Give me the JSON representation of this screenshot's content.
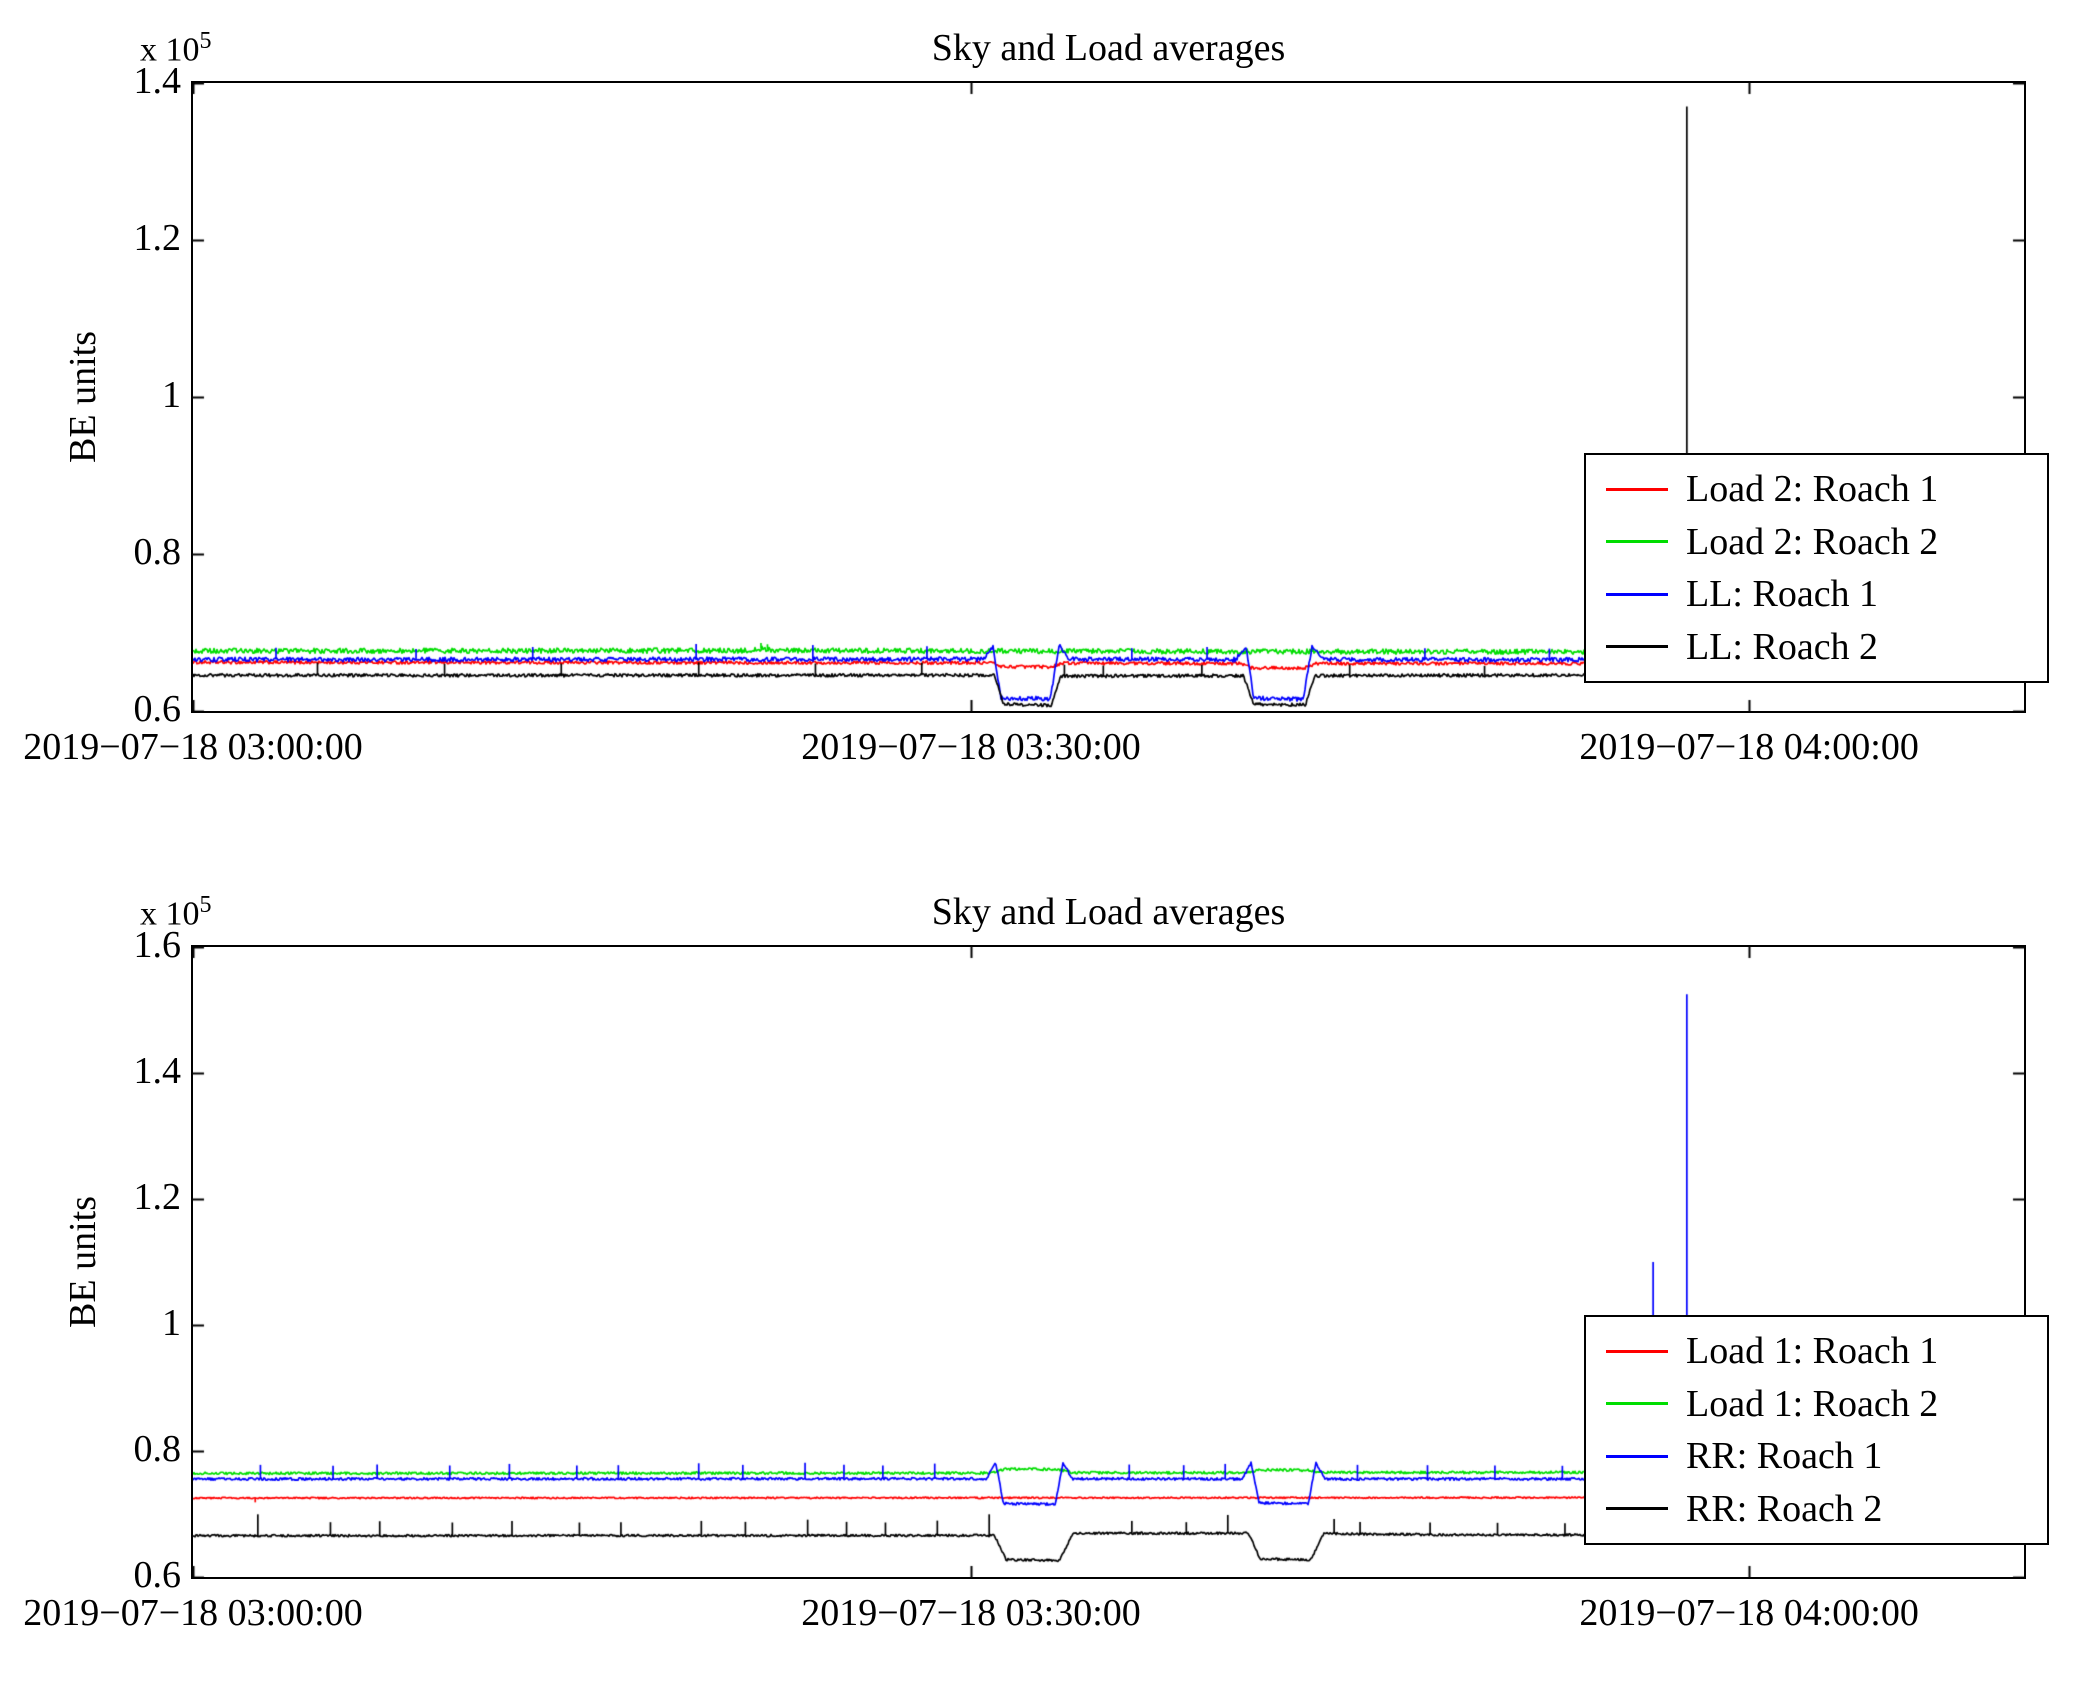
{
  "figure": {
    "background": "#ffffff"
  },
  "chart_data": [
    {
      "type": "line",
      "title": "Sky and Load averages",
      "ylabel": "BE units",
      "y_offset": {
        "base": "x 10",
        "exp": "5"
      },
      "y_units_multiplier": 100000,
      "xlim": [
        0,
        70.6
      ],
      "ylim": [
        0.6,
        1.4
      ],
      "grid": false,
      "legend_position": "right-inside",
      "yticks": [
        {
          "v": 0.6,
          "label": "0.6"
        },
        {
          "v": 0.8,
          "label": "0.8"
        },
        {
          "v": 1.0,
          "label": "1"
        },
        {
          "v": 1.2,
          "label": "1.2"
        },
        {
          "v": 1.4,
          "label": "1.4"
        }
      ],
      "xticks": [
        {
          "t": 0,
          "label": "2019−07−18 03:00:00"
        },
        {
          "t": 30,
          "label": "2019−07−18 03:30:00"
        },
        {
          "t": 60,
          "label": "2019−07−18 04:00:00"
        }
      ],
      "legend": [
        {
          "label": "Load 2: Roach 1",
          "color": "#ff0000"
        },
        {
          "label": "Load 2: Roach 2",
          "color": "#00dd00"
        },
        {
          "label": "LL: Roach 1",
          "color": "#0000ff"
        },
        {
          "label": "LL: Roach 2",
          "color": "#000000"
        }
      ],
      "series": [
        {
          "name": "Load 2: Roach 1",
          "color": "#ff0000",
          "noise": 0.002,
          "keypoints": [
            [
              0,
              0.662
            ],
            [
              30.8,
              0.6615
            ],
            [
              31.2,
              0.6565
            ],
            [
              33.1,
              0.6562
            ],
            [
              33.5,
              0.661
            ],
            [
              40.4,
              0.6605
            ],
            [
              40.8,
              0.655
            ],
            [
              42.9,
              0.655
            ],
            [
              43.3,
              0.6605
            ],
            [
              70.6,
              0.6605
            ]
          ],
          "spikes": [
            [
              2.1,
              0.6655
            ],
            [
              47.2,
              0.663
            ]
          ]
        },
        {
          "name": "Load 2: Roach 2",
          "color": "#00dd00",
          "noise": 0.0032,
          "keypoints": [
            [
              0,
              0.6765
            ],
            [
              21.4,
              0.677
            ],
            [
              21.9,
              0.6795
            ],
            [
              22.4,
              0.677
            ],
            [
              43,
              0.6757
            ],
            [
              70.6,
              0.6752
            ]
          ],
          "spikes": [
            [
              21.9,
              0.6865
            ],
            [
              22.15,
              0.685
            ]
          ]
        },
        {
          "name": "LL: Roach 1",
          "color": "#0000ff",
          "noise": 0.0028,
          "keypoints": [
            [
              0,
              0.6655
            ],
            [
              30.5,
              0.666
            ],
            [
              30.85,
              0.6835
            ],
            [
              31.15,
              0.6165
            ],
            [
              33.05,
              0.6155
            ],
            [
              33.4,
              0.684
            ],
            [
              33.75,
              0.666
            ],
            [
              40.2,
              0.6655
            ],
            [
              40.6,
              0.683
            ],
            [
              40.9,
              0.616
            ],
            [
              42.8,
              0.615
            ],
            [
              43.15,
              0.6835
            ],
            [
              43.55,
              0.6655
            ],
            [
              70.6,
              0.665
            ]
          ],
          "spikes": [
            [
              3.2,
              0.6805
            ],
            [
              8.6,
              0.679
            ],
            [
              13.1,
              0.6815
            ],
            [
              19.4,
              0.6855
            ],
            [
              23.9,
              0.684
            ],
            [
              28.3,
              0.6825
            ],
            [
              36.2,
              0.68
            ],
            [
              39.1,
              0.6815
            ],
            [
              47.5,
              0.68
            ],
            [
              52.3,
              0.6795
            ],
            [
              56.1,
              0.681
            ],
            [
              61.4,
              0.68
            ],
            [
              66.2,
              0.6815
            ],
            [
              69.8,
              0.682
            ]
          ]
        },
        {
          "name": "LL: Roach 2",
          "color": "#000000",
          "noise": 0.002,
          "keypoints": [
            [
              0,
              0.6455
            ],
            [
              30.9,
              0.6455
            ],
            [
              31.25,
              0.6085
            ],
            [
              33.1,
              0.6075
            ],
            [
              33.45,
              0.6445
            ],
            [
              40.5,
              0.645
            ],
            [
              40.9,
              0.6085
            ],
            [
              42.9,
              0.608
            ],
            [
              43.25,
              0.645
            ],
            [
              57.2,
              0.6462
            ],
            [
              70.6,
              0.646
            ]
          ],
          "spikes": [
            [
              4.8,
              0.6615
            ],
            [
              9.7,
              0.66
            ],
            [
              14.2,
              0.6605
            ],
            [
              19.5,
              0.662
            ],
            [
              24,
              0.6605
            ],
            [
              28.1,
              0.6615
            ],
            [
              33.6,
              0.659
            ],
            [
              35.1,
              0.658
            ],
            [
              38.9,
              0.659
            ],
            [
              44.6,
              0.659
            ],
            [
              49.8,
              0.6575
            ],
            [
              53.9,
              0.657
            ],
            [
              57.6,
              1.37
            ],
            [
              61,
              0.6585
            ],
            [
              65.3,
              0.659
            ],
            [
              69.2,
              0.66
            ]
          ]
        }
      ]
    },
    {
      "type": "line",
      "title": "Sky and Load averages",
      "ylabel": "BE units",
      "y_offset": {
        "base": "x 10",
        "exp": "5"
      },
      "y_units_multiplier": 100000,
      "xlim": [
        0,
        70.6
      ],
      "ylim": [
        0.6,
        1.6
      ],
      "grid": false,
      "legend_position": "right-inside",
      "yticks": [
        {
          "v": 0.6,
          "label": "0.6"
        },
        {
          "v": 0.8,
          "label": "0.8"
        },
        {
          "v": 1.0,
          "label": "1"
        },
        {
          "v": 1.2,
          "label": "1.2"
        },
        {
          "v": 1.4,
          "label": "1.4"
        },
        {
          "v": 1.6,
          "label": "1.6"
        }
      ],
      "xticks": [
        {
          "t": 0,
          "label": "2019−07−18 03:00:00"
        },
        {
          "t": 30,
          "label": "2019−07−18 03:30:00"
        },
        {
          "t": 60,
          "label": "2019−07−18 04:00:00"
        }
      ],
      "legend": [
        {
          "label": "Load 1: Roach 1",
          "color": "#ff0000"
        },
        {
          "label": "Load 1: Roach 2",
          "color": "#00dd00"
        },
        {
          "label": "RR: Roach 1",
          "color": "#0000ff"
        },
        {
          "label": "RR: Roach 2",
          "color": "#000000"
        }
      ],
      "series": [
        {
          "name": "Load 1: Roach 1",
          "color": "#ff0000",
          "noise": 0.0012,
          "keypoints": [
            [
              0,
              0.7253
            ],
            [
              70.6,
              0.7262
            ]
          ],
          "spikes": [
            [
              2.4,
              0.7185
            ]
          ]
        },
        {
          "name": "Load 1: Roach 2",
          "color": "#00dd00",
          "noise": 0.002,
          "keypoints": [
            [
              0,
              0.7645
            ],
            [
              30.8,
              0.765
            ],
            [
              31.3,
              0.7715
            ],
            [
              33.4,
              0.7708
            ],
            [
              33.9,
              0.7655
            ],
            [
              40.6,
              0.7655
            ],
            [
              41.1,
              0.77
            ],
            [
              43,
              0.7695
            ],
            [
              43.5,
              0.766
            ],
            [
              70.6,
              0.766
            ]
          ],
          "spikes": []
        },
        {
          "name": "RR: Roach 1",
          "color": "#0000ff",
          "noise": 0.002,
          "keypoints": [
            [
              0,
              0.7555
            ],
            [
              30.6,
              0.756
            ],
            [
              30.95,
              0.782
            ],
            [
              31.25,
              0.7165
            ],
            [
              33.25,
              0.7155
            ],
            [
              33.55,
              0.782
            ],
            [
              33.9,
              0.756
            ],
            [
              40.45,
              0.7555
            ],
            [
              40.8,
              0.781
            ],
            [
              41.1,
              0.7175
            ],
            [
              43,
              0.7165
            ],
            [
              43.3,
              0.781
            ],
            [
              43.65,
              0.7555
            ],
            [
              70.6,
              0.756
            ]
          ],
          "spikes": [
            [
              2.6,
              0.778
            ],
            [
              5.4,
              0.7765
            ],
            [
              7.1,
              0.7785
            ],
            [
              9.9,
              0.777
            ],
            [
              12.2,
              0.7795
            ],
            [
              14.8,
              0.777
            ],
            [
              16.4,
              0.7775
            ],
            [
              19.5,
              0.7805
            ],
            [
              21.2,
              0.778
            ],
            [
              23.6,
              0.7815
            ],
            [
              25.1,
              0.778
            ],
            [
              26.6,
              0.777
            ],
            [
              28.6,
              0.78
            ],
            [
              36.1,
              0.7785
            ],
            [
              38.2,
              0.7775
            ],
            [
              39.8,
              0.7795
            ],
            [
              44.9,
              0.778
            ],
            [
              47.6,
              0.7775
            ],
            [
              50.2,
              0.777
            ],
            [
              52.8,
              0.7765
            ],
            [
              55,
              0.777
            ],
            [
              56.3,
              1.1
            ],
            [
              57.6,
              1.525
            ],
            [
              59.6,
              0.7775
            ],
            [
              61.8,
              0.778
            ],
            [
              63.9,
              0.7775
            ],
            [
              66.1,
              0.778
            ],
            [
              68.2,
              0.7775
            ],
            [
              69.9,
              0.7805
            ]
          ]
        },
        {
          "name": "RR: Roach 2",
          "color": "#000000",
          "noise": 0.0018,
          "keypoints": [
            [
              0,
              0.6655
            ],
            [
              30.9,
              0.666
            ],
            [
              31.35,
              0.6275
            ],
            [
              33.4,
              0.6265
            ],
            [
              33.95,
              0.6695
            ],
            [
              40.7,
              0.6695
            ],
            [
              41.15,
              0.6285
            ],
            [
              43.1,
              0.6275
            ],
            [
              43.6,
              0.669
            ],
            [
              48,
              0.667
            ],
            [
              70.6,
              0.666
            ]
          ],
          "spikes": [
            [
              2.5,
              0.6995
            ],
            [
              5.3,
              0.687
            ],
            [
              7.2,
              0.6885
            ],
            [
              10,
              0.6865
            ],
            [
              12.3,
              0.689
            ],
            [
              14.9,
              0.6865
            ],
            [
              16.5,
              0.687
            ],
            [
              19.6,
              0.689
            ],
            [
              21.3,
              0.6875
            ],
            [
              23.7,
              0.691
            ],
            [
              25.2,
              0.6875
            ],
            [
              26.7,
              0.6865
            ],
            [
              28.7,
              0.6895
            ],
            [
              30.7,
              0.6995
            ],
            [
              36.2,
              0.689
            ],
            [
              38.3,
              0.687
            ],
            [
              39.9,
              0.6985
            ],
            [
              44,
              0.692
            ],
            [
              45,
              0.6875
            ],
            [
              47.7,
              0.6865
            ],
            [
              50.3,
              0.686
            ],
            [
              52.9,
              0.6855
            ],
            [
              55.1,
              0.686
            ],
            [
              56.4,
              0.69
            ],
            [
              59.7,
              0.6865
            ],
            [
              61.9,
              0.687
            ],
            [
              64,
              0.6865
            ],
            [
              66.2,
              0.687
            ],
            [
              68.3,
              0.6865
            ],
            [
              69.9,
              0.69
            ]
          ]
        }
      ]
    }
  ]
}
